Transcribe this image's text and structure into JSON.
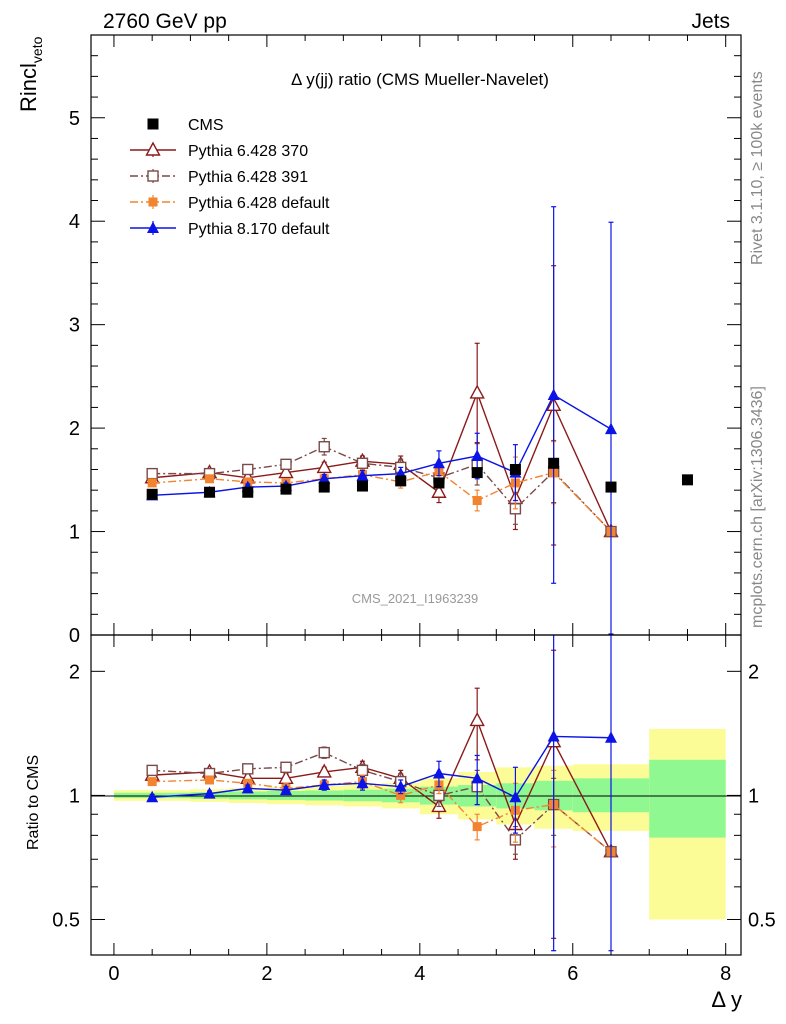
{
  "header": {
    "left": "2760 GeV pp",
    "right": "Jets"
  },
  "side_text": {
    "top": "Rivet 3.1.10, ≥ 100k events",
    "bottom": "mcplots.cern.ch [arXiv:1306.3436]"
  },
  "colors": {
    "cms": "#000000",
    "p370": "#8b1a1a",
    "p391": "#7a4a4a",
    "pdef": "#f28430",
    "p8": "#0a14e6",
    "band_inner": "#90f890",
    "band_outer": "#fcfc96"
  },
  "chart_data": [
    {
      "type": "scatter",
      "title": "Δ y(jj) ratio (CMS Mueller-Navelet)",
      "watermark": "CMS_2021_I1963239",
      "ylabel_main": "Rincl",
      "ylabel_sub": "veto",
      "xlim": [
        -0.3,
        8.2
      ],
      "ylim": [
        0,
        5.8
      ],
      "yticks": [
        "0",
        "1",
        "2",
        "3",
        "4",
        "5"
      ],
      "legend_position": "top-left",
      "series": [
        {
          "name": "CMS",
          "marker": "filled-square",
          "x": [
            0.5,
            1.25,
            1.75,
            2.25,
            2.75,
            3.25,
            3.75,
            4.25,
            4.75,
            5.25,
            5.75,
            6.5,
            7.5
          ],
          "y": [
            1.36,
            1.38,
            1.38,
            1.41,
            1.43,
            1.44,
            1.49,
            1.47,
            1.57,
            1.6,
            1.66,
            1.43,
            1.5
          ]
        },
        {
          "name": "Pythia 6.428 370",
          "marker": "open-triangle",
          "line": "solid",
          "x": [
            0.5,
            1.25,
            1.75,
            2.25,
            2.75,
            3.25,
            3.75,
            4.25,
            4.75,
            5.25,
            5.75,
            6.5
          ],
          "y": [
            1.52,
            1.57,
            1.52,
            1.57,
            1.62,
            1.68,
            1.65,
            1.38,
            2.34,
            1.32,
            2.22,
            1.0
          ],
          "err": [
            0.03,
            0.03,
            0.03,
            0.04,
            0.05,
            0.05,
            0.08,
            0.1,
            0.48,
            0.3,
            1.35,
            0.0
          ]
        },
        {
          "name": "Pythia 6.428 391",
          "marker": "open-square",
          "line": "dash-dot",
          "x": [
            0.5,
            1.25,
            1.75,
            2.25,
            2.75,
            3.25,
            3.75,
            4.25,
            4.75,
            5.25,
            5.75,
            6.5
          ],
          "y": [
            1.56,
            1.56,
            1.6,
            1.65,
            1.82,
            1.66,
            1.62,
            1.52,
            1.65,
            1.22,
            1.58,
            1.0
          ],
          "err": [
            0.03,
            0.03,
            0.03,
            0.04,
            0.08,
            0.05,
            0.08,
            0.1,
            0.2,
            0.15,
            0.3,
            0.0
          ]
        },
        {
          "name": "Pythia 6.428 default",
          "marker": "filled-square-small",
          "line": "dash-dot",
          "x": [
            0.5,
            1.25,
            1.75,
            2.25,
            2.75,
            3.25,
            3.75,
            4.25,
            4.75,
            5.25,
            5.75,
            6.5
          ],
          "y": [
            1.47,
            1.51,
            1.48,
            1.47,
            1.51,
            1.55,
            1.48,
            1.58,
            1.3,
            1.47,
            1.57,
            1.0
          ],
          "err": [
            0.03,
            0.03,
            0.03,
            0.04,
            0.04,
            0.05,
            0.06,
            0.08,
            0.1,
            0.25,
            0.3,
            0.0
          ]
        },
        {
          "name": "Pythia 8.170 default",
          "marker": "filled-triangle",
          "line": "solid",
          "x": [
            0.5,
            1.25,
            1.75,
            2.25,
            2.75,
            3.25,
            3.75,
            4.25,
            4.75,
            5.25,
            5.75,
            6.5
          ],
          "y": [
            1.35,
            1.38,
            1.43,
            1.44,
            1.51,
            1.54,
            1.56,
            1.66,
            1.73,
            1.57,
            2.32,
            1.99
          ],
          "err": [
            0.02,
            0.02,
            0.03,
            0.03,
            0.04,
            0.05,
            0.06,
            0.12,
            0.22,
            0.27,
            1.82,
            2.0
          ]
        }
      ]
    },
    {
      "type": "scatter",
      "xlabel": "Δ y",
      "ylabel": "Ratio to CMS",
      "xlim": [
        -0.3,
        8.2
      ],
      "ylim": [
        0.41,
        2.45
      ],
      "ylog": true,
      "xticks": [
        "0",
        "2",
        "4",
        "6",
        "8"
      ],
      "yticks": [
        "0.5",
        "1",
        "2"
      ],
      "bands": {
        "edges": [
          0,
          1,
          1.5,
          2,
          2.5,
          3,
          3.5,
          4,
          4.5,
          5,
          5.5,
          6,
          7,
          8
        ],
        "inner_low": [
          0.985,
          0.982,
          0.978,
          0.975,
          0.972,
          0.968,
          0.962,
          0.95,
          0.94,
          0.93,
          0.92,
          0.91,
          0.79
        ],
        "inner_high": [
          1.015,
          1.018,
          1.022,
          1.025,
          1.028,
          1.032,
          1.038,
          1.05,
          1.06,
          1.07,
          1.085,
          1.1,
          1.22
        ],
        "outer_low": [
          0.97,
          0.965,
          0.958,
          0.952,
          0.946,
          0.94,
          0.93,
          0.9,
          0.875,
          0.85,
          0.83,
          0.82,
          0.5
        ],
        "outer_high": [
          1.03,
          1.035,
          1.042,
          1.048,
          1.055,
          1.062,
          1.072,
          1.1,
          1.14,
          1.17,
          1.18,
          1.19,
          1.45
        ]
      },
      "series": [
        {
          "name": "Pythia 6.428 370",
          "x": [
            0.5,
            1.25,
            1.75,
            2.25,
            2.75,
            3.25,
            3.75,
            4.25,
            4.75,
            5.25,
            5.75,
            6.5
          ],
          "y": [
            1.12,
            1.14,
            1.1,
            1.1,
            1.14,
            1.17,
            1.1,
            0.94,
            1.52,
            0.85,
            1.35,
            0.73
          ],
          "err": [
            0.02,
            0.02,
            0.02,
            0.03,
            0.03,
            0.04,
            0.05,
            0.06,
            0.3,
            0.15,
            0.9,
            0.0
          ]
        },
        {
          "name": "Pythia 6.428 391",
          "x": [
            0.5,
            1.25,
            1.75,
            2.25,
            2.75,
            3.25,
            3.75,
            4.25,
            4.75,
            5.25,
            5.75,
            6.5
          ],
          "y": [
            1.15,
            1.13,
            1.16,
            1.17,
            1.27,
            1.15,
            1.08,
            1.0,
            1.05,
            0.78,
            0.95,
            0.73
          ],
          "err": [
            0.02,
            0.02,
            0.02,
            0.03,
            0.04,
            0.04,
            0.05,
            0.06,
            0.1,
            0.06,
            0.15,
            0.0
          ]
        },
        {
          "name": "Pythia 6.428 default",
          "x": [
            0.5,
            1.25,
            1.75,
            2.25,
            2.75,
            3.25,
            3.75,
            4.25,
            4.75,
            5.25,
            5.75,
            6.5
          ],
          "y": [
            1.08,
            1.09,
            1.07,
            1.04,
            1.06,
            1.08,
            1.0,
            1.06,
            0.84,
            0.92,
            0.95,
            0.73
          ],
          "err": [
            0.02,
            0.02,
            0.02,
            0.03,
            0.03,
            0.04,
            0.04,
            0.05,
            0.06,
            0.15,
            0.2,
            0.0
          ]
        },
        {
          "name": "Pythia 8.170 default",
          "x": [
            0.5,
            1.25,
            1.75,
            2.25,
            2.75,
            3.25,
            3.75,
            4.25,
            4.75,
            5.25,
            5.75,
            6.5
          ],
          "y": [
            0.99,
            1.01,
            1.04,
            1.03,
            1.06,
            1.07,
            1.05,
            1.13,
            1.1,
            0.99,
            1.39,
            1.38
          ],
          "err": [
            0.015,
            0.015,
            0.02,
            0.02,
            0.03,
            0.04,
            0.04,
            0.08,
            0.15,
            0.18,
            1.2,
            1.3
          ]
        }
      ]
    }
  ]
}
